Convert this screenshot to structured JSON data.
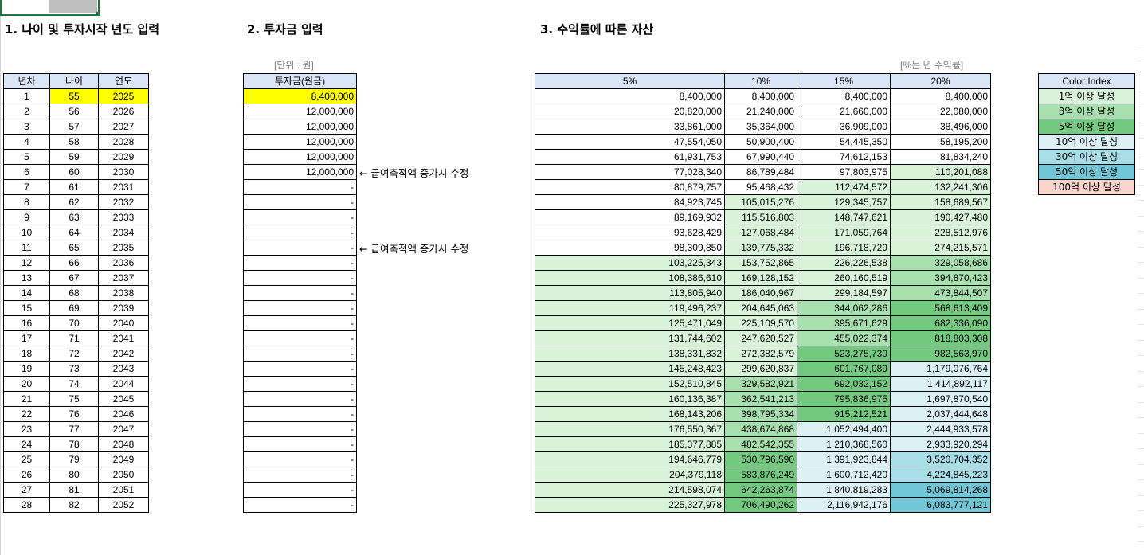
{
  "sections": {
    "age_title": "1. 나이 및 투자시작 년도 입력",
    "invest_title": "2. 투자금 입력",
    "assets_title": "3. 수익률에 따른 자산"
  },
  "units": {
    "won": "[단위 : 원]",
    "annual": "[%는 년 수익률]"
  },
  "age_table": {
    "headers": [
      "년차",
      "나이",
      "연도"
    ],
    "rows": [
      [
        "1",
        "55",
        "2025"
      ],
      [
        "2",
        "56",
        "2026"
      ],
      [
        "3",
        "57",
        "2027"
      ],
      [
        "4",
        "58",
        "2028"
      ],
      [
        "5",
        "59",
        "2029"
      ],
      [
        "6",
        "60",
        "2030"
      ],
      [
        "7",
        "61",
        "2031"
      ],
      [
        "8",
        "62",
        "2032"
      ],
      [
        "9",
        "63",
        "2033"
      ],
      [
        "10",
        "64",
        "2034"
      ],
      [
        "11",
        "65",
        "2035"
      ],
      [
        "12",
        "66",
        "2036"
      ],
      [
        "13",
        "67",
        "2037"
      ],
      [
        "14",
        "68",
        "2038"
      ],
      [
        "15",
        "69",
        "2039"
      ],
      [
        "16",
        "70",
        "2040"
      ],
      [
        "17",
        "71",
        "2041"
      ],
      [
        "18",
        "72",
        "2042"
      ],
      [
        "19",
        "73",
        "2043"
      ],
      [
        "20",
        "74",
        "2044"
      ],
      [
        "21",
        "75",
        "2045"
      ],
      [
        "22",
        "76",
        "2046"
      ],
      [
        "23",
        "77",
        "2047"
      ],
      [
        "24",
        "78",
        "2048"
      ],
      [
        "25",
        "79",
        "2049"
      ],
      [
        "26",
        "80",
        "2050"
      ],
      [
        "27",
        "81",
        "2051"
      ],
      [
        "28",
        "82",
        "2052"
      ]
    ]
  },
  "invest_table": {
    "header": "투자금(원금)",
    "values": [
      "8,400,000",
      "12,000,000",
      "12,000,000",
      "12,000,000",
      "12,000,000",
      "12,000,000",
      "-",
      "-",
      "-",
      "-",
      "-",
      "-",
      "-",
      "-",
      "-",
      "-",
      "-",
      "-",
      "-",
      "-",
      "-",
      "-",
      "-",
      "-",
      "-",
      "-",
      "-",
      "-"
    ]
  },
  "notes": [
    {
      "row": 5,
      "text": "← 급여축적액 증가시 수정"
    },
    {
      "row": 10,
      "text": "← 급여축적액 증가시 수정"
    }
  ],
  "assets_table": {
    "headers": [
      "5%",
      "10%",
      "15%",
      "20%"
    ],
    "rows": [
      [
        [
          "8,400,000",
          0
        ],
        [
          "8,400,000",
          0
        ],
        [
          "8,400,000",
          0
        ],
        [
          "8,400,000",
          0
        ]
      ],
      [
        [
          "20,820,000",
          0
        ],
        [
          "21,240,000",
          0
        ],
        [
          "21,660,000",
          0
        ],
        [
          "22,080,000",
          0
        ]
      ],
      [
        [
          "33,861,000",
          0
        ],
        [
          "35,364,000",
          0
        ],
        [
          "36,909,000",
          0
        ],
        [
          "38,496,000",
          0
        ]
      ],
      [
        [
          "47,554,050",
          0
        ],
        [
          "50,900,400",
          0
        ],
        [
          "54,445,350",
          0
        ],
        [
          "58,195,200",
          0
        ]
      ],
      [
        [
          "61,931,753",
          0
        ],
        [
          "67,990,440",
          0
        ],
        [
          "74,612,153",
          0
        ],
        [
          "81,834,240",
          0
        ]
      ],
      [
        [
          "77,028,340",
          0
        ],
        [
          "86,789,484",
          0
        ],
        [
          "97,803,975",
          0
        ],
        [
          "110,201,088",
          1
        ]
      ],
      [
        [
          "80,879,757",
          0
        ],
        [
          "95,468,432",
          0
        ],
        [
          "112,474,572",
          1
        ],
        [
          "132,241,306",
          1
        ]
      ],
      [
        [
          "84,923,745",
          0
        ],
        [
          "105,015,276",
          1
        ],
        [
          "129,345,757",
          1
        ],
        [
          "158,689,567",
          1
        ]
      ],
      [
        [
          "89,169,932",
          0
        ],
        [
          "115,516,803",
          1
        ],
        [
          "148,747,621",
          1
        ],
        [
          "190,427,480",
          1
        ]
      ],
      [
        [
          "93,628,429",
          0
        ],
        [
          "127,068,484",
          1
        ],
        [
          "171,059,764",
          1
        ],
        [
          "228,512,976",
          1
        ]
      ],
      [
        [
          "98,309,850",
          0
        ],
        [
          "139,775,332",
          1
        ],
        [
          "196,718,729",
          1
        ],
        [
          "274,215,571",
          1
        ]
      ],
      [
        [
          "103,225,343",
          1
        ],
        [
          "153,752,865",
          1
        ],
        [
          "226,226,538",
          1
        ],
        [
          "329,058,686",
          2
        ]
      ],
      [
        [
          "108,386,610",
          1
        ],
        [
          "169,128,152",
          1
        ],
        [
          "260,160,519",
          1
        ],
        [
          "394,870,423",
          2
        ]
      ],
      [
        [
          "113,805,940",
          1
        ],
        [
          "186,040,967",
          1
        ],
        [
          "299,184,597",
          1
        ],
        [
          "473,844,507",
          2
        ]
      ],
      [
        [
          "119,496,237",
          1
        ],
        [
          "204,645,063",
          1
        ],
        [
          "344,062,286",
          2
        ],
        [
          "568,613,409",
          3
        ]
      ],
      [
        [
          "125,471,049",
          1
        ],
        [
          "225,109,570",
          1
        ],
        [
          "395,671,629",
          2
        ],
        [
          "682,336,090",
          3
        ]
      ],
      [
        [
          "131,744,602",
          1
        ],
        [
          "247,620,527",
          1
        ],
        [
          "455,022,374",
          2
        ],
        [
          "818,803,308",
          3
        ]
      ],
      [
        [
          "138,331,832",
          1
        ],
        [
          "272,382,579",
          1
        ],
        [
          "523,275,730",
          3
        ],
        [
          "982,563,970",
          3
        ]
      ],
      [
        [
          "145,248,423",
          1
        ],
        [
          "299,620,837",
          1
        ],
        [
          "601,767,089",
          3
        ],
        [
          "1,179,076,764",
          4
        ]
      ],
      [
        [
          "152,510,845",
          1
        ],
        [
          "329,582,921",
          2
        ],
        [
          "692,032,152",
          3
        ],
        [
          "1,414,892,117",
          4
        ]
      ],
      [
        [
          "160,136,387",
          1
        ],
        [
          "362,541,213",
          2
        ],
        [
          "795,836,975",
          3
        ],
        [
          "1,697,870,540",
          4
        ]
      ],
      [
        [
          "168,143,206",
          1
        ],
        [
          "398,795,334",
          2
        ],
        [
          "915,212,521",
          3
        ],
        [
          "2,037,444,648",
          4
        ]
      ],
      [
        [
          "176,550,367",
          1
        ],
        [
          "438,674,868",
          2
        ],
        [
          "1,052,494,400",
          4
        ],
        [
          "2,444,933,578",
          4
        ]
      ],
      [
        [
          "185,377,885",
          1
        ],
        [
          "482,542,355",
          2
        ],
        [
          "1,210,368,560",
          4
        ],
        [
          "2,933,920,294",
          4
        ]
      ],
      [
        [
          "194,646,779",
          1
        ],
        [
          "530,796,590",
          3
        ],
        [
          "1,391,923,844",
          4
        ],
        [
          "3,520,704,352",
          5
        ]
      ],
      [
        [
          "204,379,118",
          1
        ],
        [
          "583,876,249",
          3
        ],
        [
          "1,600,712,420",
          4
        ],
        [
          "4,224,845,223",
          5
        ]
      ],
      [
        [
          "214,598,074",
          1
        ],
        [
          "642,263,874",
          3
        ],
        [
          "1,840,819,283",
          4
        ],
        [
          "5,069,814,268",
          6
        ]
      ],
      [
        [
          "225,327,978",
          1
        ],
        [
          "706,490,262",
          3
        ],
        [
          "2,116,942,176",
          4
        ],
        [
          "6,083,777,121",
          6
        ]
      ]
    ]
  },
  "legend": {
    "header": "Color Index",
    "items": [
      {
        "label": "1억 이상 달성",
        "color": "#d9f2da"
      },
      {
        "label": "3억 이상 달성",
        "color": "#a8dfae"
      },
      {
        "label": "5억 이상 달성",
        "color": "#74c980"
      },
      {
        "label": "10억 이상 달성",
        "color": "#dcf1f6"
      },
      {
        "label": "30억 이상 달성",
        "color": "#a9dde8"
      },
      {
        "label": "50억 이상 달성",
        "color": "#73c6d6"
      },
      {
        "label": "100억 이상 달성",
        "color": "#fbd5cc"
      }
    ]
  }
}
